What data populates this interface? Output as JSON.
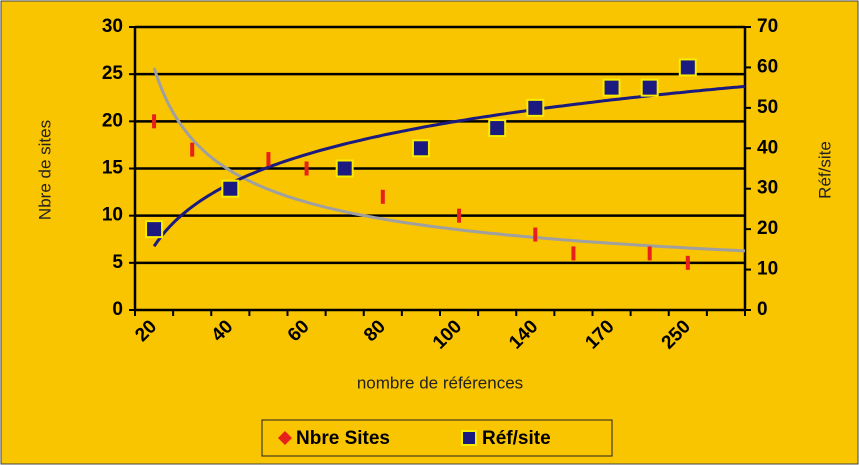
{
  "chart_data": {
    "type": "scatter",
    "categories": [
      "20",
      null,
      "40",
      null,
      "60",
      null,
      "80",
      null,
      "100",
      null,
      "140",
      null,
      "170",
      null,
      "250",
      null
    ],
    "x_label": "nombre de références",
    "y_label": "Nbre de sites",
    "y2_label": "Réf/site",
    "series": [
      {
        "name": "Nbre Sites",
        "color": "#e8201c",
        "values": [
          20,
          17,
          null,
          16,
          15,
          null,
          12,
          null,
          10,
          null,
          8,
          6,
          null,
          6,
          5,
          null
        ]
      },
      {
        "name": "Réf/site",
        "color": "#1a1a80",
        "axis": "y2",
        "values": [
          20,
          null,
          30,
          null,
          null,
          35,
          null,
          40,
          null,
          45,
          50,
          null,
          55,
          55,
          60,
          null
        ]
      }
    ],
    "ylim": [
      0,
      30
    ],
    "yticks": [
      0,
      5,
      10,
      15,
      20,
      25,
      30
    ],
    "y2lim": [
      0,
      70
    ],
    "y2ticks": [
      0,
      10,
      20,
      30,
      40,
      50,
      60,
      70
    ],
    "grid": true
  }
}
